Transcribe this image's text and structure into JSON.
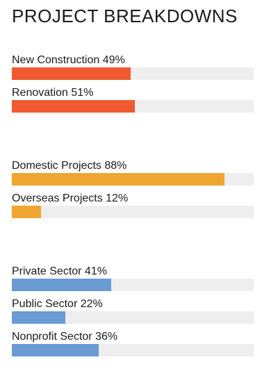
{
  "title": "PROJECT BREAKDOWNS",
  "groups": [
    {
      "color": "#f15a31",
      "items": [
        {
          "label": "New Construction 49%",
          "value": 49
        },
        {
          "label": "Renovation 51%",
          "value": 51
        }
      ]
    },
    {
      "color": "#eea631",
      "items": [
        {
          "label": "Domestic Projects 88%",
          "value": 88
        },
        {
          "label": "Overseas Projects 12%",
          "value": 12
        }
      ]
    },
    {
      "color": "#6a9bd2",
      "items": [
        {
          "label": "Private Sector 41%",
          "value": 41
        },
        {
          "label": "Public Sector 22%",
          "value": 22
        },
        {
          "label": "Nonprofit Sector 36%",
          "value": 36
        }
      ]
    }
  ]
}
